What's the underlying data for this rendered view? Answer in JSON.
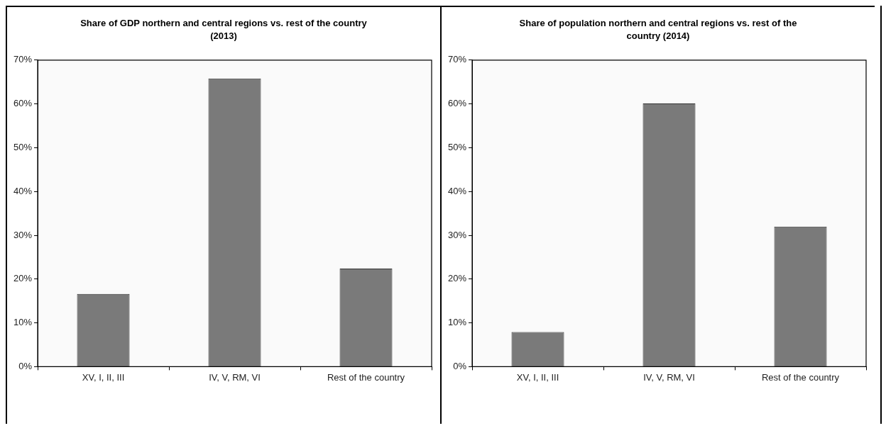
{
  "chart_data": [
    {
      "type": "bar",
      "title": "Share of GDP northern and central regions vs. rest of the country (2013)",
      "categories": [
        "XV, I, II, III",
        "IV, V, RM, VI",
        "Rest of the country"
      ],
      "values": [
        16.6,
        65.8,
        22.4
      ],
      "color": "#7a7a7a",
      "ylim": [
        0,
        70
      ],
      "yticks": [
        {
          "value": 0,
          "label": "0%"
        },
        {
          "value": 10,
          "label": "10%"
        },
        {
          "value": 20,
          "label": "20%"
        },
        {
          "value": 30,
          "label": "30%"
        },
        {
          "value": 40,
          "label": "40%"
        },
        {
          "value": 50,
          "label": "50%"
        },
        {
          "value": 60,
          "label": "60%"
        },
        {
          "value": 70,
          "label": "70%"
        }
      ],
      "grid": false,
      "legend": false
    },
    {
      "type": "bar",
      "title": "Share of population northern and central regions vs. rest of the country (2014)",
      "categories": [
        "XV, I, II, III",
        "IV, V, RM, VI",
        "Rest of the country"
      ],
      "values": [
        7.9,
        60.1,
        32.0
      ],
      "color": "#7a7a7a",
      "ylim": [
        0,
        70
      ],
      "yticks": [
        {
          "value": 0,
          "label": "0%"
        },
        {
          "value": 10,
          "label": "10%"
        },
        {
          "value": 20,
          "label": "20%"
        },
        {
          "value": 30,
          "label": "30%"
        },
        {
          "value": 40,
          "label": "40%"
        },
        {
          "value": 50,
          "label": "50%"
        },
        {
          "value": 60,
          "label": "60%"
        },
        {
          "value": 70,
          "label": "70%"
        }
      ],
      "grid": false,
      "legend": false
    }
  ]
}
